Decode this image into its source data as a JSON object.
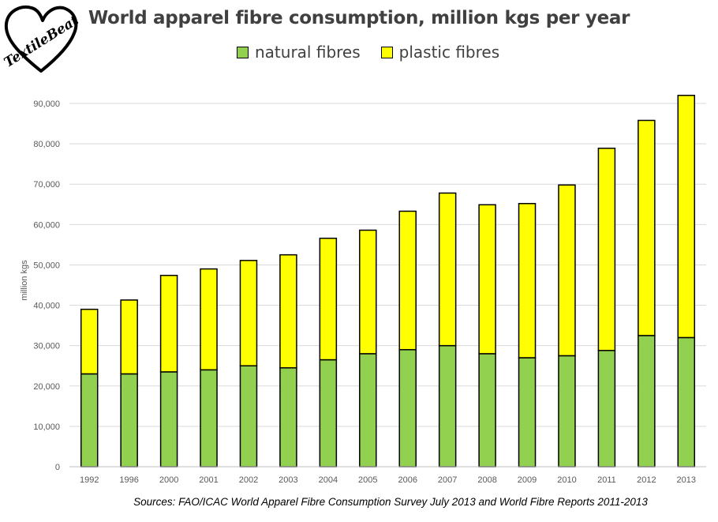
{
  "logo": {
    "text": "TextileBeat"
  },
  "chart_data": {
    "type": "bar",
    "stacked": true,
    "title": "World apparel fibre consumption, million kgs per year",
    "ylabel": "million kgs",
    "xlabel": "",
    "ylim": [
      0,
      90000
    ],
    "ytick_values": [
      0,
      10000,
      20000,
      30000,
      40000,
      50000,
      60000,
      70000,
      80000,
      90000
    ],
    "ytick_labels": [
      "0",
      "10,000",
      "20,000",
      "30,000",
      "40,000",
      "50,000",
      "60,000",
      "70,000",
      "80,000",
      "90,000"
    ],
    "grid": true,
    "legend_position": "top",
    "categories": [
      "1992",
      "1996",
      "2000",
      "2001",
      "2002",
      "2003",
      "2004",
      "2005",
      "2006",
      "2007",
      "2008",
      "2009",
      "2010",
      "2011",
      "2012",
      "2013"
    ],
    "series": [
      {
        "name": "natural fibres",
        "color": "#92d050",
        "values": [
          23000,
          23000,
          23500,
          24000,
          25000,
          24500,
          26500,
          28000,
          29000,
          30000,
          28000,
          27000,
          27500,
          28800,
          32500,
          32000
        ]
      },
      {
        "name": "plastic fibres",
        "color": "#ffff00",
        "values": [
          16000,
          18300,
          23900,
          25000,
          26100,
          28000,
          30100,
          30600,
          34300,
          37800,
          36900,
          38200,
          42300,
          50100,
          53300,
          60000
        ]
      }
    ],
    "source_note": "Sources: FAO/ICAC World Apparel Fibre Consumption Survey July 2013  and World Fibre Reports 2011-2013"
  }
}
